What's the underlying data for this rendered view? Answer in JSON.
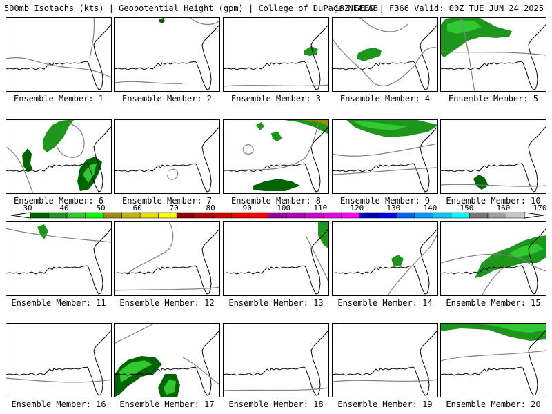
{
  "header": {
    "left": "500mb Isotachs (kts) | Geopotential Height (gpm) | College of DuPage NEXLAB",
    "right": "18Z GEFS | F366 Valid: 00Z TUE JUN 24 2025"
  },
  "caption_prefix": "Ensemble Member: ",
  "members": [
    {
      "number": "1"
    },
    {
      "number": "2"
    },
    {
      "number": "3"
    },
    {
      "number": "4"
    },
    {
      "number": "5"
    },
    {
      "number": "6"
    },
    {
      "number": "7"
    },
    {
      "number": "8"
    },
    {
      "number": "9"
    },
    {
      "number": "10"
    },
    {
      "number": "11"
    },
    {
      "number": "12"
    },
    {
      "number": "13"
    },
    {
      "number": "14"
    },
    {
      "number": "15"
    },
    {
      "number": "16"
    },
    {
      "number": "17"
    },
    {
      "number": "18"
    },
    {
      "number": "19"
    },
    {
      "number": "20"
    }
  ],
  "colorbar": {
    "labels": [
      "30",
      "40",
      "50",
      "60",
      "70",
      "80",
      "90",
      "100",
      "110",
      "120",
      "130",
      "140",
      "150",
      "160",
      "170"
    ],
    "colors": [
      "#006400",
      "#1e961e",
      "#32c832",
      "#00ff00",
      "#a08c00",
      "#c8b400",
      "#e6dc00",
      "#ffff00",
      "#8b0000",
      "#b40000",
      "#d20000",
      "#e60000",
      "#ff0000",
      "#9b009b",
      "#b400b4",
      "#cd00cd",
      "#e600e6",
      "#ff00ff",
      "#0000b4",
      "#0000e6",
      "#0064ff",
      "#0096ff",
      "#00c8ff",
      "#00ffff",
      "#787878",
      "#a0a0a0",
      "#c8c8c8"
    ]
  },
  "colors": {
    "coast": "#000000",
    "height_contour": "#808080",
    "isotach_dark": "#006400",
    "isotach_mid": "#1e961e",
    "isotach_light": "#32c832"
  }
}
